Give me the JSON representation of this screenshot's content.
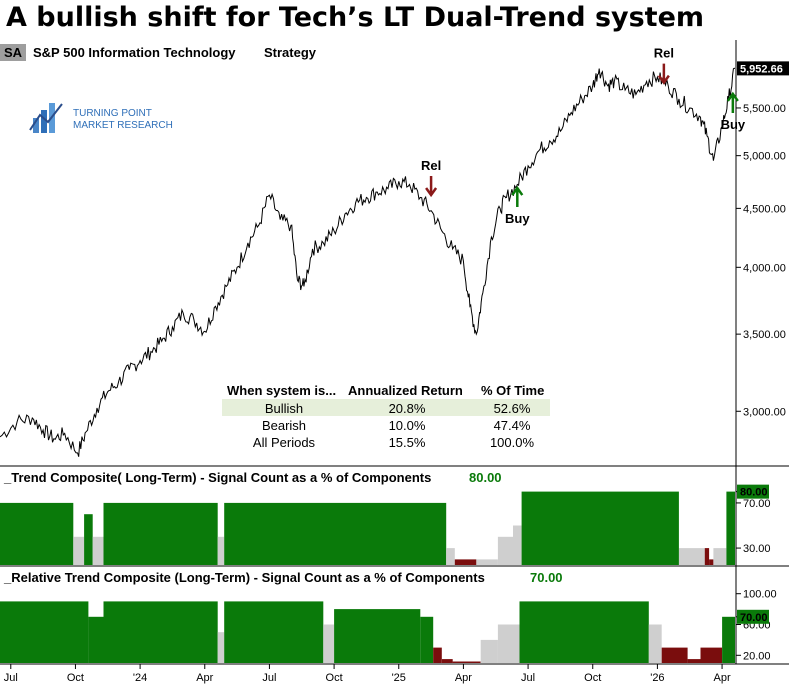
{
  "title": "A bullish shift for Tech’s LT Dual-Trend system",
  "symbol_badge": "SA",
  "series_label": "S&P 500 Information Technology",
  "strategy_label": "Strategy",
  "logo": {
    "line1": "TURNING POINT",
    "line2": "MARKET RESEARCH"
  },
  "colors": {
    "green": "#0a7a0a",
    "red": "#7a0d0d",
    "gray": "#cfcfcf",
    "price": "#000000",
    "table_highlight": "#e6efda"
  },
  "chart_data": [
    {
      "type": "line",
      "series_name": "S&P 500 Information Technology",
      "scale": "log",
      "ylim": [
        2700,
        6300
      ],
      "y_ticks": [
        3000,
        3500,
        4000,
        4500,
        5000,
        5500
      ],
      "y_tick_labels": [
        "3,000.00",
        "3,500.00",
        "4,000.00",
        "4,500.00",
        "5,000.00",
        "5,500.00"
      ],
      "last_value": 5952.66,
      "last_value_label": "5,952.66",
      "x_tick_labels": [
        "Jul",
        "Oct",
        "'24",
        "Apr",
        "Jul",
        "Oct",
        "'25",
        "Apr",
        "Jul",
        "Oct",
        "'26",
        "Apr"
      ],
      "x_ticks_month": [
        0,
        3,
        6,
        9,
        12,
        15,
        18,
        21,
        24,
        27,
        30,
        33
      ],
      "x_range_month": [
        -0.5,
        33.6
      ],
      "points": [
        [
          -0.5,
          2850
        ],
        [
          0.3,
          2940
        ],
        [
          1.0,
          2960
        ],
        [
          1.5,
          2890
        ],
        [
          2.0,
          2840
        ],
        [
          2.5,
          2870
        ],
        [
          3.1,
          2760
        ],
        [
          3.5,
          2880
        ],
        [
          4.0,
          3020
        ],
        [
          4.5,
          3120
        ],
        [
          5.0,
          3180
        ],
        [
          5.5,
          3260
        ],
        [
          6.0,
          3320
        ],
        [
          6.5,
          3380
        ],
        [
          7.0,
          3450
        ],
        [
          7.5,
          3550
        ],
        [
          8.0,
          3650
        ],
        [
          8.5,
          3600
        ],
        [
          9.0,
          3520
        ],
        [
          9.5,
          3700
        ],
        [
          10.0,
          3850
        ],
        [
          10.5,
          4000
        ],
        [
          11.0,
          4200
        ],
        [
          11.5,
          4350
        ],
        [
          12.0,
          4620
        ],
        [
          12.5,
          4400
        ],
        [
          13.0,
          4350
        ],
        [
          13.3,
          3900
        ],
        [
          13.6,
          3850
        ],
        [
          14.0,
          4150
        ],
        [
          14.5,
          4200
        ],
        [
          15.0,
          4300
        ],
        [
          15.5,
          4450
        ],
        [
          16.0,
          4550
        ],
        [
          16.5,
          4600
        ],
        [
          17.0,
          4650
        ],
        [
          17.5,
          4680
        ],
        [
          18.0,
          4750
        ],
        [
          18.5,
          4720
        ],
        [
          19.0,
          4600
        ],
        [
          19.5,
          4480
        ],
        [
          20.0,
          4300
        ],
        [
          20.5,
          4150
        ],
        [
          21.0,
          4050
        ],
        [
          21.3,
          3700
        ],
        [
          21.6,
          3500
        ],
        [
          21.9,
          3800
        ],
        [
          22.3,
          4250
        ],
        [
          22.7,
          4500
        ],
        [
          23.0,
          4600
        ],
        [
          23.5,
          4720
        ],
        [
          24.0,
          4900
        ],
        [
          24.5,
          5050
        ],
        [
          25.0,
          5150
        ],
        [
          25.5,
          5250
        ],
        [
          26.0,
          5450
        ],
        [
          26.5,
          5600
        ],
        [
          27.0,
          5750
        ],
        [
          27.3,
          5950
        ],
        [
          27.7,
          5750
        ],
        [
          28.0,
          5800
        ],
        [
          28.5,
          5700
        ],
        [
          29.0,
          5650
        ],
        [
          29.5,
          5800
        ],
        [
          30.0,
          5850
        ],
        [
          30.5,
          5750
        ],
        [
          31.0,
          5600
        ],
        [
          31.5,
          5500
        ],
        [
          32.0,
          5400
        ],
        [
          32.3,
          5200
        ],
        [
          32.6,
          4950
        ],
        [
          33.0,
          5300
        ],
        [
          33.3,
          5600
        ],
        [
          33.6,
          5952.66
        ]
      ],
      "signals": [
        {
          "label": "Rel",
          "direction": "down",
          "x": 19.5,
          "y": 4650,
          "color": "#8b1a1a"
        },
        {
          "label": "Buy",
          "direction": "up",
          "x": 23.5,
          "y": 4640,
          "color": "#0a7a0a"
        },
        {
          "label": "Rel",
          "direction": "down",
          "x": 30.3,
          "y": 5820,
          "color": "#8b1a1a"
        },
        {
          "label": "Buy",
          "direction": "up",
          "x": 33.5,
          "y": 5600,
          "color": "#0a7a0a"
        }
      ]
    },
    {
      "type": "bar",
      "title": "_Trend Composite( Long-Term) - Signal Count as a % of Components",
      "current_value": 80.0,
      "current_value_label": "80.00",
      "ylim": [
        15,
        85
      ],
      "y_ticks": [
        30,
        70,
        80
      ],
      "y_tick_labels": [
        "30.00",
        "70.00",
        "80.00"
      ],
      "segments": [
        [
          -0.5,
          2.9,
          70,
          "green"
        ],
        [
          2.9,
          3.4,
          40,
          "gray"
        ],
        [
          3.4,
          3.8,
          60,
          "green"
        ],
        [
          3.8,
          4.3,
          40,
          "gray"
        ],
        [
          4.3,
          9.6,
          70,
          "green"
        ],
        [
          9.6,
          9.9,
          40,
          "gray"
        ],
        [
          9.9,
          20.2,
          70,
          "green"
        ],
        [
          20.2,
          20.6,
          30,
          "gray"
        ],
        [
          20.6,
          21.6,
          20,
          "red"
        ],
        [
          21.6,
          22.6,
          20,
          "gray"
        ],
        [
          22.6,
          23.3,
          40,
          "gray"
        ],
        [
          23.3,
          23.7,
          50,
          "gray"
        ],
        [
          23.7,
          31.0,
          80,
          "green"
        ],
        [
          31.0,
          32.2,
          30,
          "gray"
        ],
        [
          32.2,
          32.4,
          30,
          "red"
        ],
        [
          32.4,
          32.6,
          20,
          "red"
        ],
        [
          32.6,
          33.2,
          30,
          "gray"
        ],
        [
          33.2,
          33.6,
          80,
          "green"
        ]
      ]
    },
    {
      "type": "bar",
      "title": "_Relative Trend Composite (Long-Term) - Signal Count as a % of Components",
      "current_value": 70.0,
      "current_value_label": "70.00",
      "ylim": [
        10,
        110
      ],
      "y_ticks": [
        20,
        60,
        70,
        100
      ],
      "y_tick_labels": [
        "20.00",
        "60.00",
        "70.00",
        "100.00"
      ],
      "segments": [
        [
          -0.5,
          3.6,
          90,
          "green"
        ],
        [
          3.6,
          4.3,
          70,
          "green"
        ],
        [
          4.3,
          9.6,
          90,
          "green"
        ],
        [
          9.6,
          9.9,
          50,
          "gray"
        ],
        [
          9.9,
          14.5,
          90,
          "green"
        ],
        [
          14.5,
          15.0,
          60,
          "gray"
        ],
        [
          15.0,
          19.0,
          80,
          "green"
        ],
        [
          19.0,
          19.6,
          70,
          "green"
        ],
        [
          19.6,
          20.0,
          30,
          "red"
        ],
        [
          20.0,
          20.5,
          15,
          "red"
        ],
        [
          20.5,
          21.8,
          12,
          "red"
        ],
        [
          21.8,
          22.6,
          40,
          "gray"
        ],
        [
          22.6,
          23.6,
          60,
          "gray"
        ],
        [
          23.6,
          29.6,
          90,
          "green"
        ],
        [
          29.6,
          30.2,
          60,
          "gray"
        ],
        [
          30.2,
          31.4,
          30,
          "red"
        ],
        [
          31.4,
          32.0,
          15,
          "red"
        ],
        [
          32.0,
          33.0,
          30,
          "red"
        ],
        [
          33.0,
          33.6,
          70,
          "green"
        ]
      ]
    }
  ],
  "stats_table": {
    "headers": [
      "When system is...",
      "Annualized Return",
      "% Of Time"
    ],
    "rows": [
      {
        "label": "Bullish",
        "return": "20.8%",
        "time": "52.6%"
      },
      {
        "label": "Bearish",
        "return": "10.0%",
        "time": "47.4%"
      },
      {
        "label": "All Periods",
        "return": "15.5%",
        "time": "100.0%"
      }
    ]
  }
}
